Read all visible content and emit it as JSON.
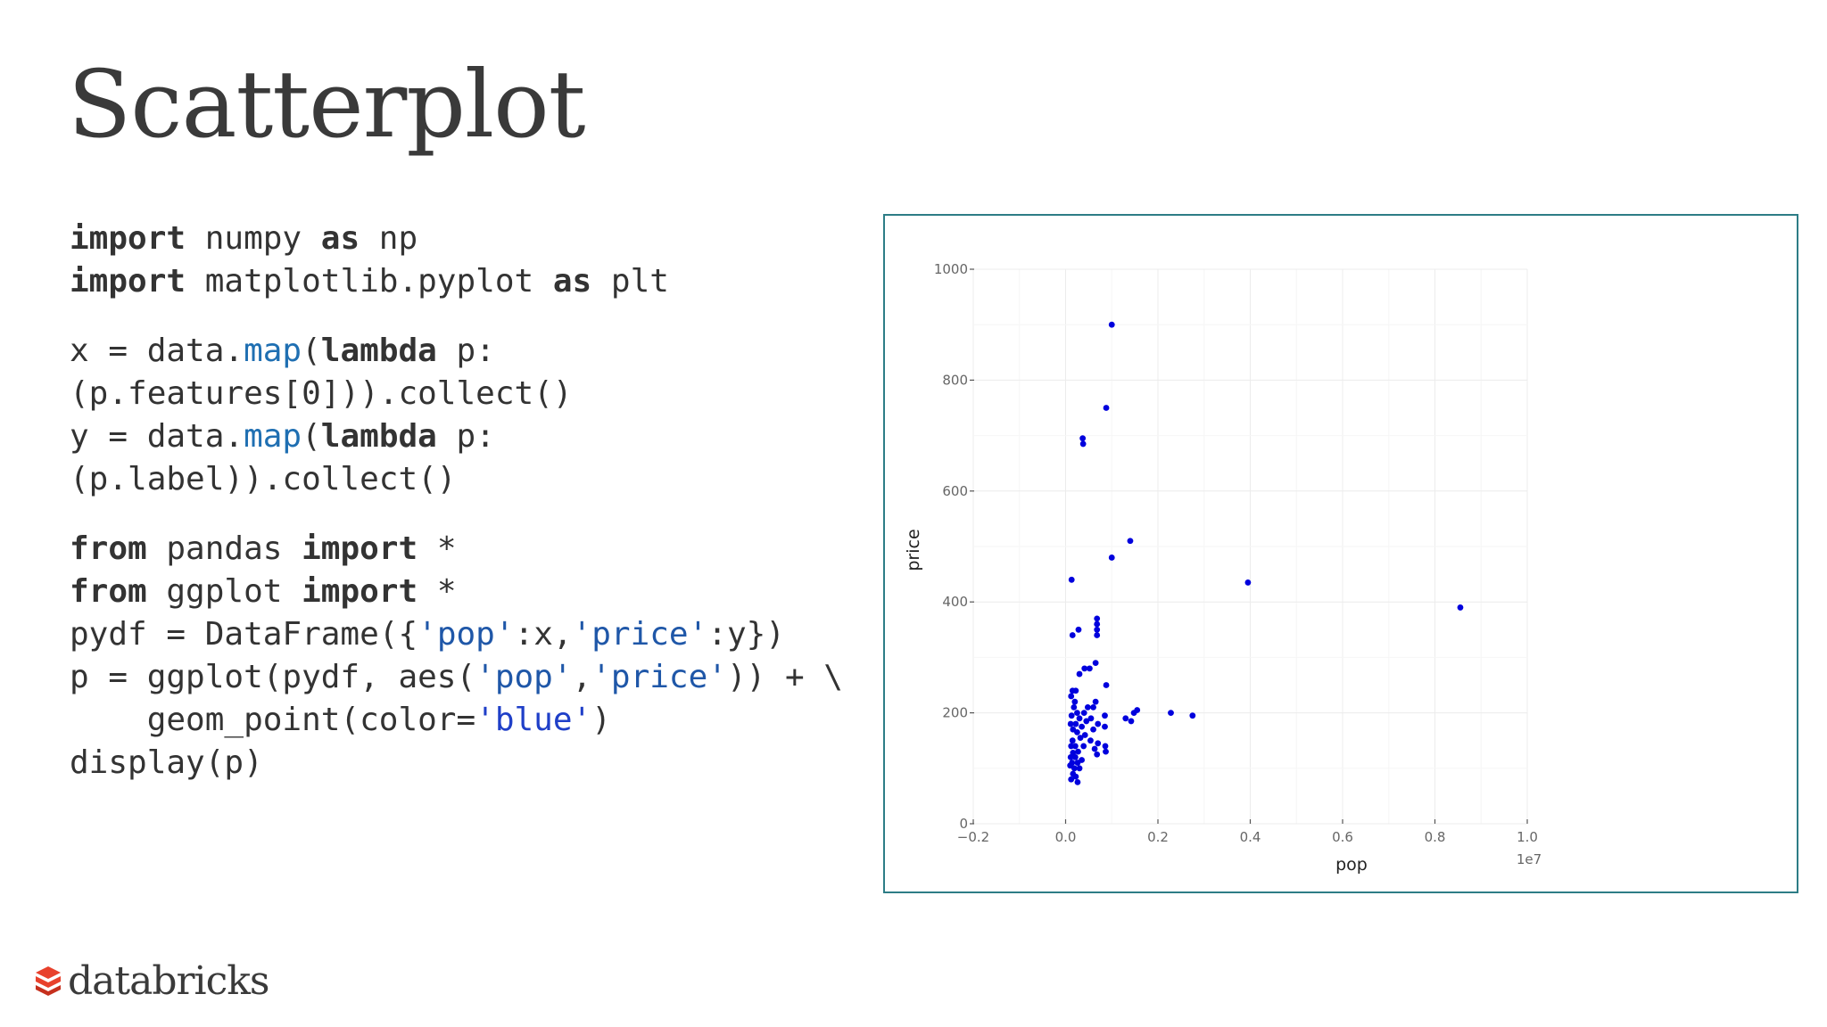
{
  "slide": {
    "title": "Scatterplot",
    "brand": "databricks"
  },
  "code": {
    "l1": {
      "kw1": "import",
      "t1": " numpy ",
      "kw2": "as",
      "t2": " np"
    },
    "l2": {
      "kw1": "import",
      "t1": " matplotlib.pyplot ",
      "kw2": "as",
      "t2": " plt"
    },
    "l3": {
      "t1": "x = data.",
      "fn": "map",
      "t2": "(",
      "kw": "lambda",
      "t3": " p:"
    },
    "l4": {
      "t1": "(p.features[0])).collect()"
    },
    "l5": {
      "t1": "y = data.",
      "fn": "map",
      "t2": "(",
      "kw": "lambda",
      "t3": " p:"
    },
    "l6": {
      "t1": "(p.label)).collect()"
    },
    "l7": {
      "kw1": "from",
      "t1": " pandas ",
      "kw2": "import",
      "t2": " *"
    },
    "l8": {
      "kw1": "from",
      "t1": " ggplot ",
      "kw2": "import",
      "t2": " *"
    },
    "l9": {
      "t1": "pydf = DataFrame({",
      "s1": "'pop'",
      "t2": ":x,",
      "s2": "'price'",
      "t3": ":y})"
    },
    "l10": {
      "t1": "p = ggplot(pydf, aes(",
      "s1": "'pop'",
      "t2": ",",
      "s2": "'price'",
      "t3": ")) + \\"
    },
    "l11": {
      "t1": "    geom_point(color=",
      "s1": "'blue'",
      "t2": ")"
    },
    "l12": {
      "t1": "display(p)"
    }
  },
  "chart_data": {
    "type": "scatter",
    "xlabel": "pop",
    "ylabel": "price",
    "x_offset_label": "1e7",
    "xlim": [
      -0.2,
      1.0
    ],
    "ylim": [
      0,
      1000
    ],
    "x_ticks": [
      -0.2,
      0.0,
      0.2,
      0.4,
      0.6,
      0.8,
      1.0
    ],
    "x_tick_labels": [
      "−0.2",
      "0.0",
      "0.2",
      "0.4",
      "0.6",
      "0.8",
      "1.0"
    ],
    "y_ticks": [
      0,
      200,
      400,
      600,
      800,
      1000
    ],
    "y_tick_labels": [
      "0",
      "200",
      "400",
      "600",
      "800",
      "1000"
    ],
    "grid": true,
    "point_color": "#0000dd",
    "x_scale": 10000000,
    "points": [
      [
        1000000,
        900
      ],
      [
        880000,
        750
      ],
      [
        370000,
        695
      ],
      [
        380000,
        685
      ],
      [
        1400000,
        510
      ],
      [
        1000000,
        480
      ],
      [
        3950000,
        435
      ],
      [
        8550000,
        390
      ],
      [
        130000,
        440
      ],
      [
        680000,
        370
      ],
      [
        680000,
        360
      ],
      [
        680000,
        350
      ],
      [
        680000,
        340
      ],
      [
        280000,
        350
      ],
      [
        150000,
        340
      ],
      [
        650000,
        290
      ],
      [
        520000,
        280
      ],
      [
        410000,
        280
      ],
      [
        300000,
        270
      ],
      [
        880000,
        250
      ],
      [
        150000,
        240
      ],
      [
        220000,
        240
      ],
      [
        120000,
        230
      ],
      [
        200000,
        220
      ],
      [
        650000,
        220
      ],
      [
        600000,
        210
      ],
      [
        180000,
        210
      ],
      [
        480000,
        210
      ],
      [
        400000,
        200
      ],
      [
        250000,
        200
      ],
      [
        1550000,
        205
      ],
      [
        1480000,
        200
      ],
      [
        2280000,
        200
      ],
      [
        2750000,
        195
      ],
      [
        1300000,
        190
      ],
      [
        1420000,
        185
      ],
      [
        850000,
        195
      ],
      [
        130000,
        195
      ],
      [
        300000,
        190
      ],
      [
        550000,
        190
      ],
      [
        450000,
        185
      ],
      [
        700000,
        180
      ],
      [
        220000,
        180
      ],
      [
        110000,
        180
      ],
      [
        350000,
        175
      ],
      [
        600000,
        170
      ],
      [
        850000,
        175
      ],
      [
        160000,
        170
      ],
      [
        250000,
        165
      ],
      [
        420000,
        160
      ],
      [
        320000,
        155
      ],
      [
        540000,
        150
      ],
      [
        150000,
        150
      ],
      [
        700000,
        145
      ],
      [
        120000,
        140
      ],
      [
        860000,
        140
      ],
      [
        210000,
        140
      ],
      [
        390000,
        140
      ],
      [
        630000,
        135
      ],
      [
        270000,
        130
      ],
      [
        870000,
        130
      ],
      [
        160000,
        128
      ],
      [
        680000,
        125
      ],
      [
        110000,
        120
      ],
      [
        210000,
        120
      ],
      [
        350000,
        115
      ],
      [
        140000,
        110
      ],
      [
        260000,
        110
      ],
      [
        100000,
        105
      ],
      [
        190000,
        100
      ],
      [
        300000,
        100
      ],
      [
        160000,
        90
      ],
      [
        220000,
        85
      ],
      [
        120000,
        80
      ],
      [
        260000,
        75
      ]
    ]
  }
}
